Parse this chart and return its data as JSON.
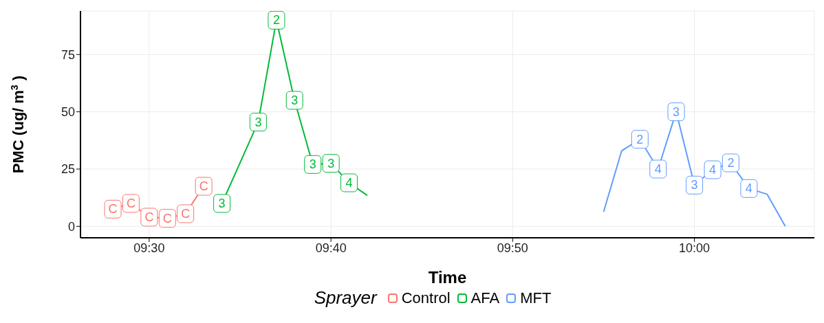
{
  "chart_data": {
    "type": "line",
    "xlabel": "Time",
    "ylabel": "PMC (ug/ m$^{3}$ )",
    "legend_title": "Sprayer",
    "legend": "bottom",
    "grid": true,
    "xlim": [
      9.437,
      10.11
    ],
    "ylim": [
      -5,
      94
    ],
    "xticks": [
      {
        "value": 9.5,
        "label": "09:30"
      },
      {
        "value": 9.6667,
        "label": "09:40"
      },
      {
        "value": 9.8333,
        "label": "09:50"
      },
      {
        "value": 10,
        "label": "10:00"
      }
    ],
    "yticks": [
      0,
      25,
      50,
      75
    ],
    "series": [
      {
        "name": "Control",
        "color": "#f8766d",
        "marker": "square",
        "x": [
          9.4667,
          9.4833,
          9.5,
          9.5167,
          9.5333,
          9.55
        ],
        "values": [
          7.5,
          10,
          4,
          3.5,
          5.5,
          17.5
        ]
      },
      {
        "name": "AFA",
        "color": "#00ba38",
        "marker": "square",
        "x": [
          9.5667,
          9.6,
          9.6167,
          9.6333,
          9.65,
          9.6667,
          9.6833,
          9.7
        ],
        "values": [
          10,
          45.5,
          90,
          55,
          27,
          27.5,
          19,
          13.5
        ]
      },
      {
        "name": "MFT",
        "color": "#619cff",
        "marker": "square",
        "x": [
          9.9167,
          9.9333,
          9.95,
          9.9667,
          9.9833,
          10,
          10.0167,
          10.0333,
          10.05,
          10.0667,
          10.0833
        ],
        "values": [
          6.3,
          33,
          38,
          25,
          50,
          18,
          24.7,
          27.7,
          16.5,
          14,
          0
        ]
      }
    ],
    "annotations": [
      {
        "text": "C",
        "x": 9.4667,
        "y": 7.5
      },
      {
        "text": "C",
        "x": 9.4833,
        "y": 10
      },
      {
        "text": "C",
        "x": 9.5,
        "y": 4
      },
      {
        "text": "C",
        "x": 9.5167,
        "y": 3.5
      },
      {
        "text": "C",
        "x": 9.5333,
        "y": 5.5
      },
      {
        "text": "C",
        "x": 9.55,
        "y": 17.5
      },
      {
        "text": "3",
        "x": 9.5667,
        "y": 10
      },
      {
        "text": "3",
        "x": 9.6,
        "y": 45.5
      },
      {
        "text": "2",
        "x": 9.6167,
        "y": 90
      },
      {
        "text": "3",
        "x": 9.6333,
        "y": 55
      },
      {
        "text": "3",
        "x": 9.65,
        "y": 27
      },
      {
        "text": "3",
        "x": 9.6667,
        "y": 27.5
      },
      {
        "text": "4",
        "x": 9.6833,
        "y": 19
      },
      {
        "text": "2",
        "x": 9.95,
        "y": 38
      },
      {
        "text": "4",
        "x": 9.9667,
        "y": 25
      },
      {
        "text": "3",
        "x": 9.9833,
        "y": 50
      },
      {
        "text": "3",
        "x": 10,
        "y": 18
      },
      {
        "text": "4",
        "x": 10.0167,
        "y": 24.7
      },
      {
        "text": "2",
        "x": 10.0333,
        "y": 27.7
      },
      {
        "text": "4",
        "x": 10.05,
        "y": 16.5
      }
    ]
  }
}
